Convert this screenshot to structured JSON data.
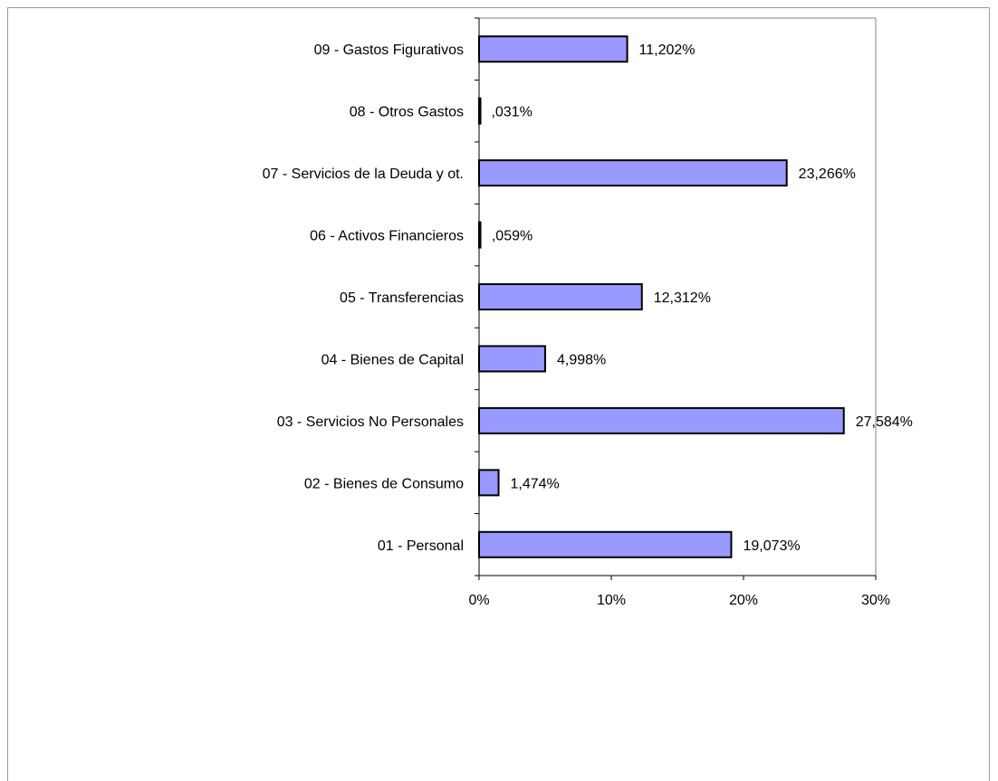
{
  "chart_data": {
    "type": "bar",
    "orientation": "horizontal",
    "categories": [
      "01 - Personal",
      "02 - Bienes de Consumo",
      "03 - Servicios No Personales",
      "04 - Bienes de Capital",
      "05 - Transferencias",
      "06 - Activos Financieros",
      "07 - Servicios de la Deuda y ot.",
      "08 - Otros Gastos",
      "09 - Gastos Figurativos"
    ],
    "values": [
      19.073,
      1.474,
      27.584,
      4.998,
      12.312,
      0.059,
      23.266,
      0.031,
      11.202
    ],
    "data_labels": [
      "19,073%",
      "1,474%",
      "27,584%",
      "4,998%",
      "12,312%",
      ",059%",
      "23,266%",
      ",031%",
      "11,202%"
    ],
    "x_ticks": [
      0,
      10,
      20,
      30
    ],
    "x_tick_labels": [
      "0%",
      "10%",
      "20%",
      "30%"
    ],
    "xlim": [
      0,
      30
    ],
    "xlabel": "",
    "ylabel": "",
    "title": "",
    "grid": false,
    "legend": "none",
    "colors": {
      "bar_fill": "#9999ff",
      "bar_stroke": "#000000",
      "plot_border": "#808080",
      "axis": "#000000",
      "frame": "#9a9a9a"
    }
  }
}
